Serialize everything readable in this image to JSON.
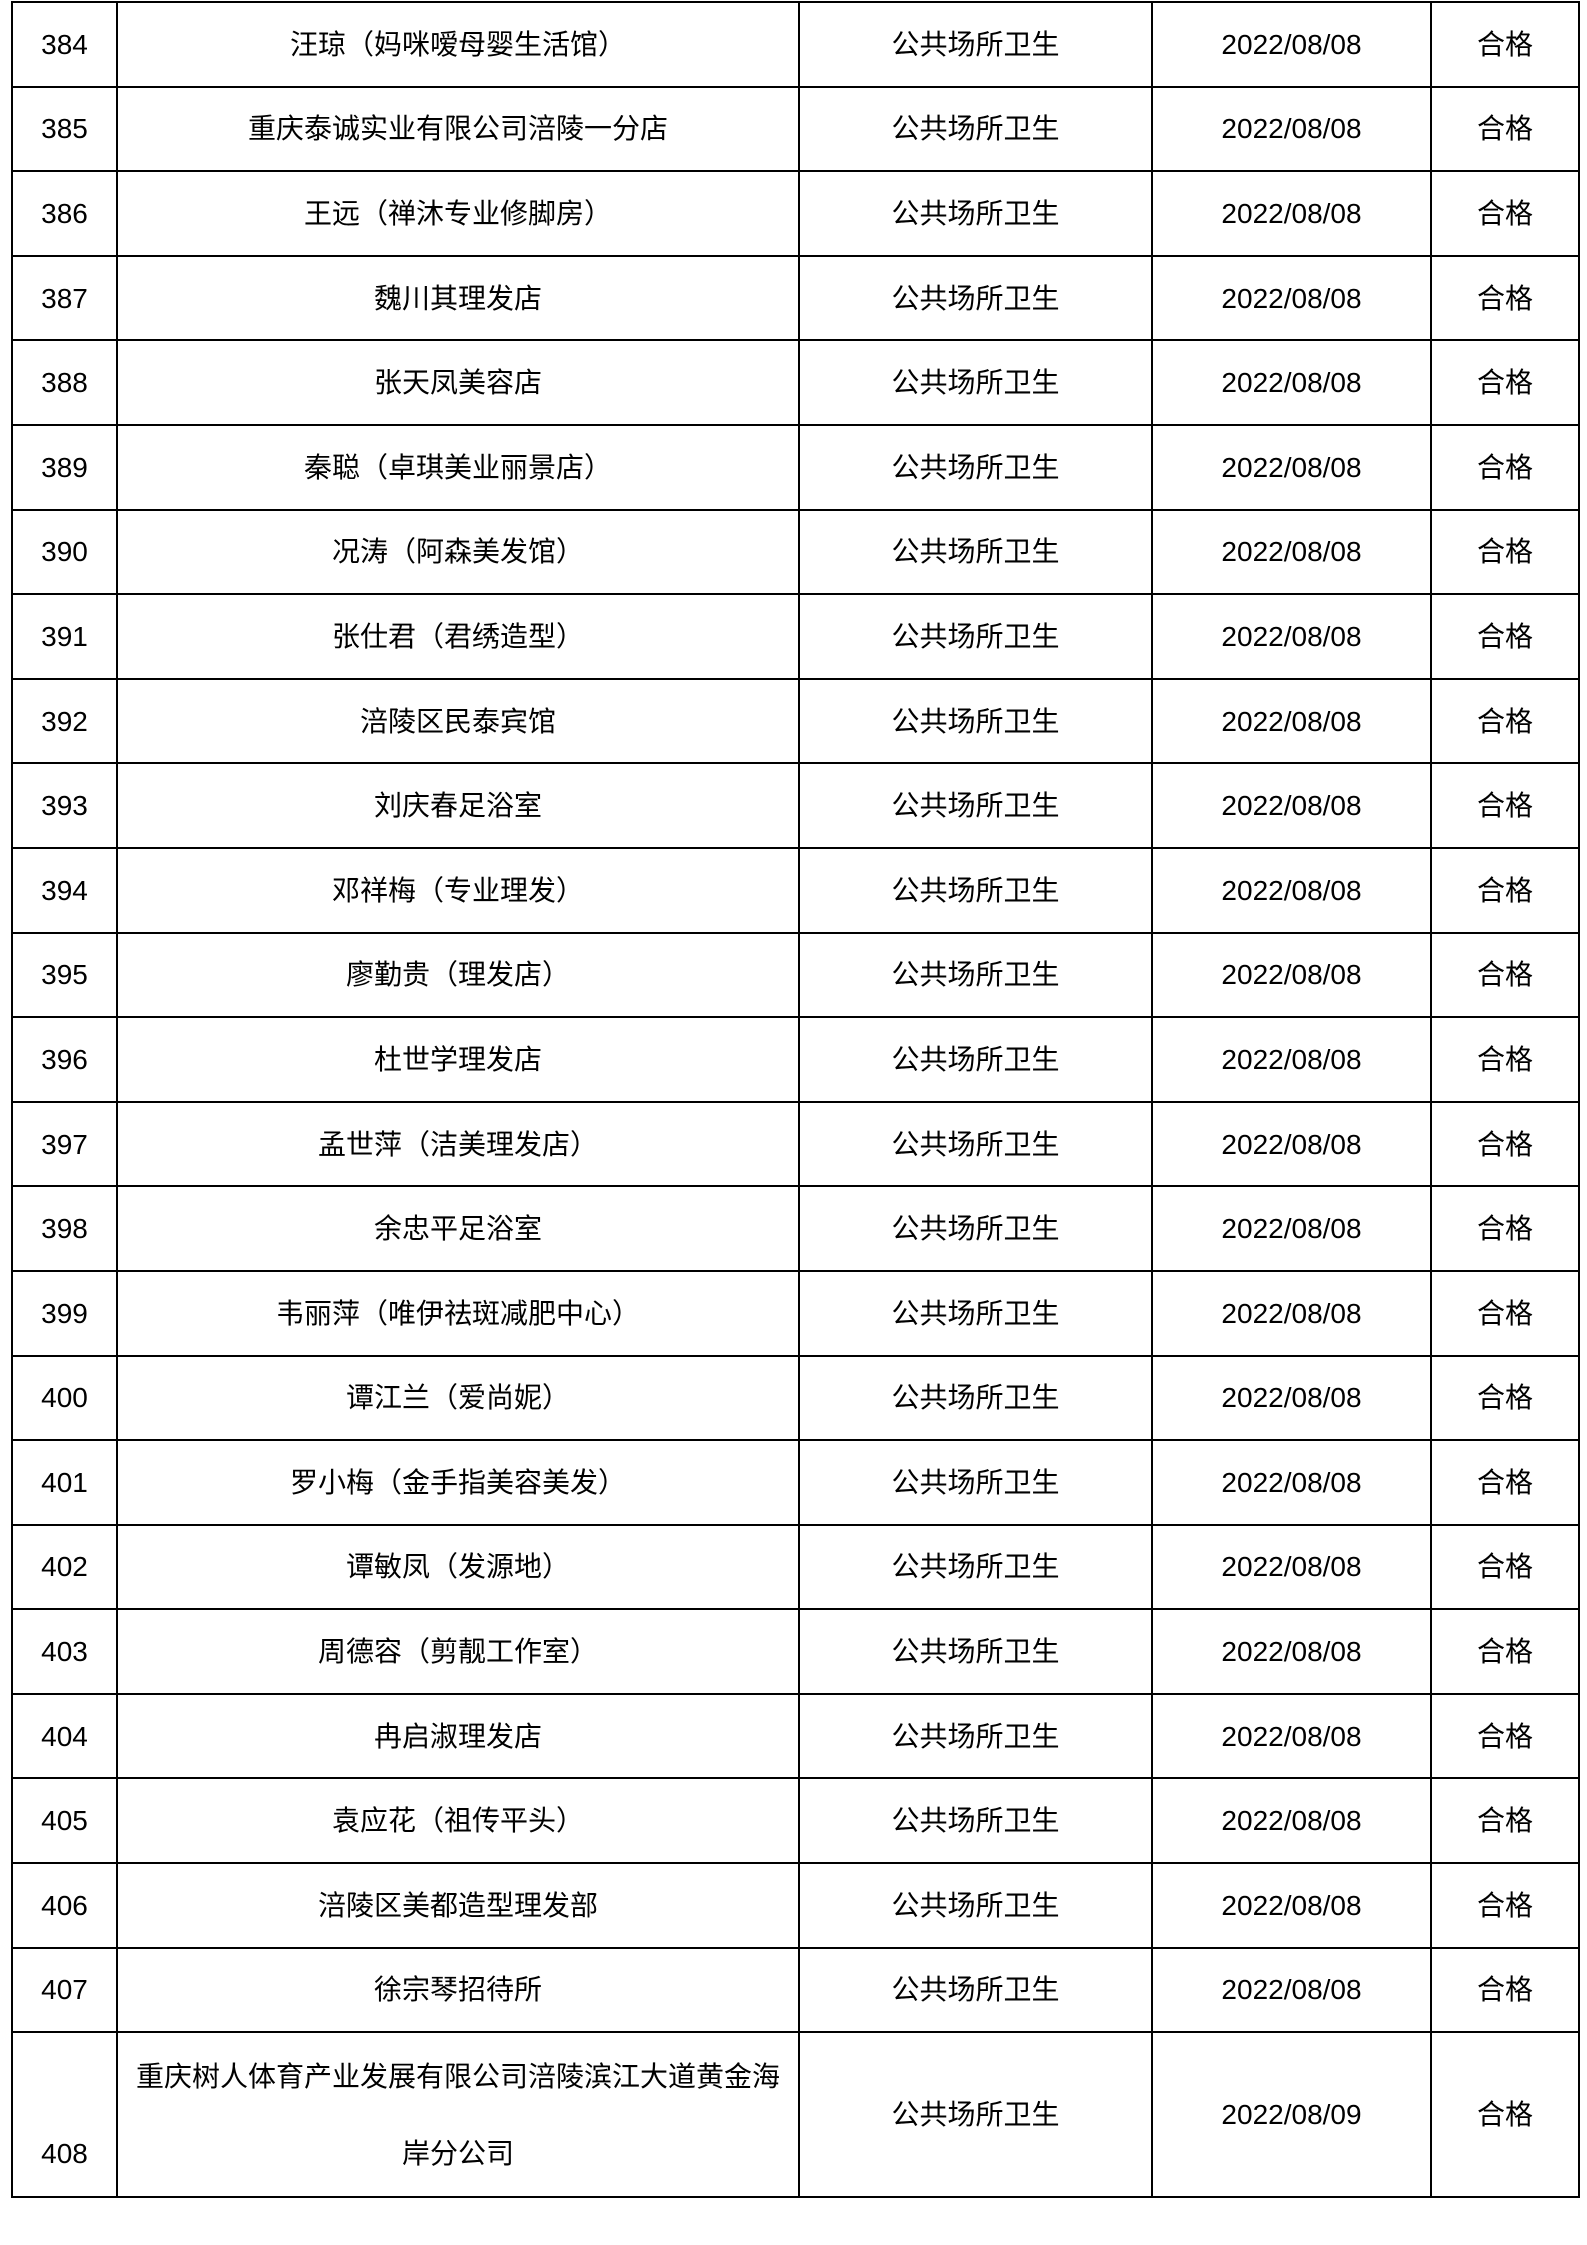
{
  "colors": {
    "background": "#ffffff",
    "border": "#000000",
    "text": "#000000"
  },
  "table": {
    "rows": [
      {
        "no": "384",
        "name": "汪琼（妈咪嗳母婴生活馆）",
        "category": "公共场所卫生",
        "date": "2022/08/08",
        "result": "合格"
      },
      {
        "no": "385",
        "name": "重庆泰诚实业有限公司涪陵一分店",
        "category": "公共场所卫生",
        "date": "2022/08/08",
        "result": "合格"
      },
      {
        "no": "386",
        "name": "王远（禅沐专业修脚房）",
        "category": "公共场所卫生",
        "date": "2022/08/08",
        "result": "合格"
      },
      {
        "no": "387",
        "name": "魏川其理发店",
        "category": "公共场所卫生",
        "date": "2022/08/08",
        "result": "合格"
      },
      {
        "no": "388",
        "name": "张天凤美容店",
        "category": "公共场所卫生",
        "date": "2022/08/08",
        "result": "合格"
      },
      {
        "no": "389",
        "name": "秦聪（卓琪美业丽景店）",
        "category": "公共场所卫生",
        "date": "2022/08/08",
        "result": "合格"
      },
      {
        "no": "390",
        "name": "况涛（阿森美发馆）",
        "category": "公共场所卫生",
        "date": "2022/08/08",
        "result": "合格"
      },
      {
        "no": "391",
        "name": "张仕君（君绣造型）",
        "category": "公共场所卫生",
        "date": "2022/08/08",
        "result": "合格"
      },
      {
        "no": "392",
        "name": "涪陵区民泰宾馆",
        "category": "公共场所卫生",
        "date": "2022/08/08",
        "result": "合格"
      },
      {
        "no": "393",
        "name": "刘庆春足浴室",
        "category": "公共场所卫生",
        "date": "2022/08/08",
        "result": "合格"
      },
      {
        "no": "394",
        "name": "邓祥梅（专业理发）",
        "category": "公共场所卫生",
        "date": "2022/08/08",
        "result": "合格"
      },
      {
        "no": "395",
        "name": "廖勤贵（理发店）",
        "category": "公共场所卫生",
        "date": "2022/08/08",
        "result": "合格"
      },
      {
        "no": "396",
        "name": "杜世学理发店",
        "category": "公共场所卫生",
        "date": "2022/08/08",
        "result": "合格"
      },
      {
        "no": "397",
        "name": "孟世萍（洁美理发店）",
        "category": "公共场所卫生",
        "date": "2022/08/08",
        "result": "合格"
      },
      {
        "no": "398",
        "name": "余忠平足浴室",
        "category": "公共场所卫生",
        "date": "2022/08/08",
        "result": "合格"
      },
      {
        "no": "399",
        "name": "韦丽萍（唯伊祛斑减肥中心）",
        "category": "公共场所卫生",
        "date": "2022/08/08",
        "result": "合格"
      },
      {
        "no": "400",
        "name": "谭江兰（爱尚妮）",
        "category": "公共场所卫生",
        "date": "2022/08/08",
        "result": "合格"
      },
      {
        "no": "401",
        "name": "罗小梅（金手指美容美发）",
        "category": "公共场所卫生",
        "date": "2022/08/08",
        "result": "合格"
      },
      {
        "no": "402",
        "name": "谭敏凤（发源地）",
        "category": "公共场所卫生",
        "date": "2022/08/08",
        "result": "合格"
      },
      {
        "no": "403",
        "name": "周德容（剪靓工作室）",
        "category": "公共场所卫生",
        "date": "2022/08/08",
        "result": "合格"
      },
      {
        "no": "404",
        "name": "冉启淑理发店",
        "category": "公共场所卫生",
        "date": "2022/08/08",
        "result": "合格"
      },
      {
        "no": "405",
        "name": "袁应花（祖传平头）",
        "category": "公共场所卫生",
        "date": "2022/08/08",
        "result": "合格"
      },
      {
        "no": "406",
        "name": "涪陵区美都造型理发部",
        "category": "公共场所卫生",
        "date": "2022/08/08",
        "result": "合格"
      },
      {
        "no": "407",
        "name": "徐宗琴招待所",
        "category": "公共场所卫生",
        "date": "2022/08/08",
        "result": "合格"
      },
      {
        "no": "408",
        "name": "重庆树人体育产业发展有限公司涪陵滨江大道黄金海\n岸分公司",
        "category": "公共场所卫生",
        "date": "2022/08/09",
        "result": "合格"
      }
    ]
  }
}
